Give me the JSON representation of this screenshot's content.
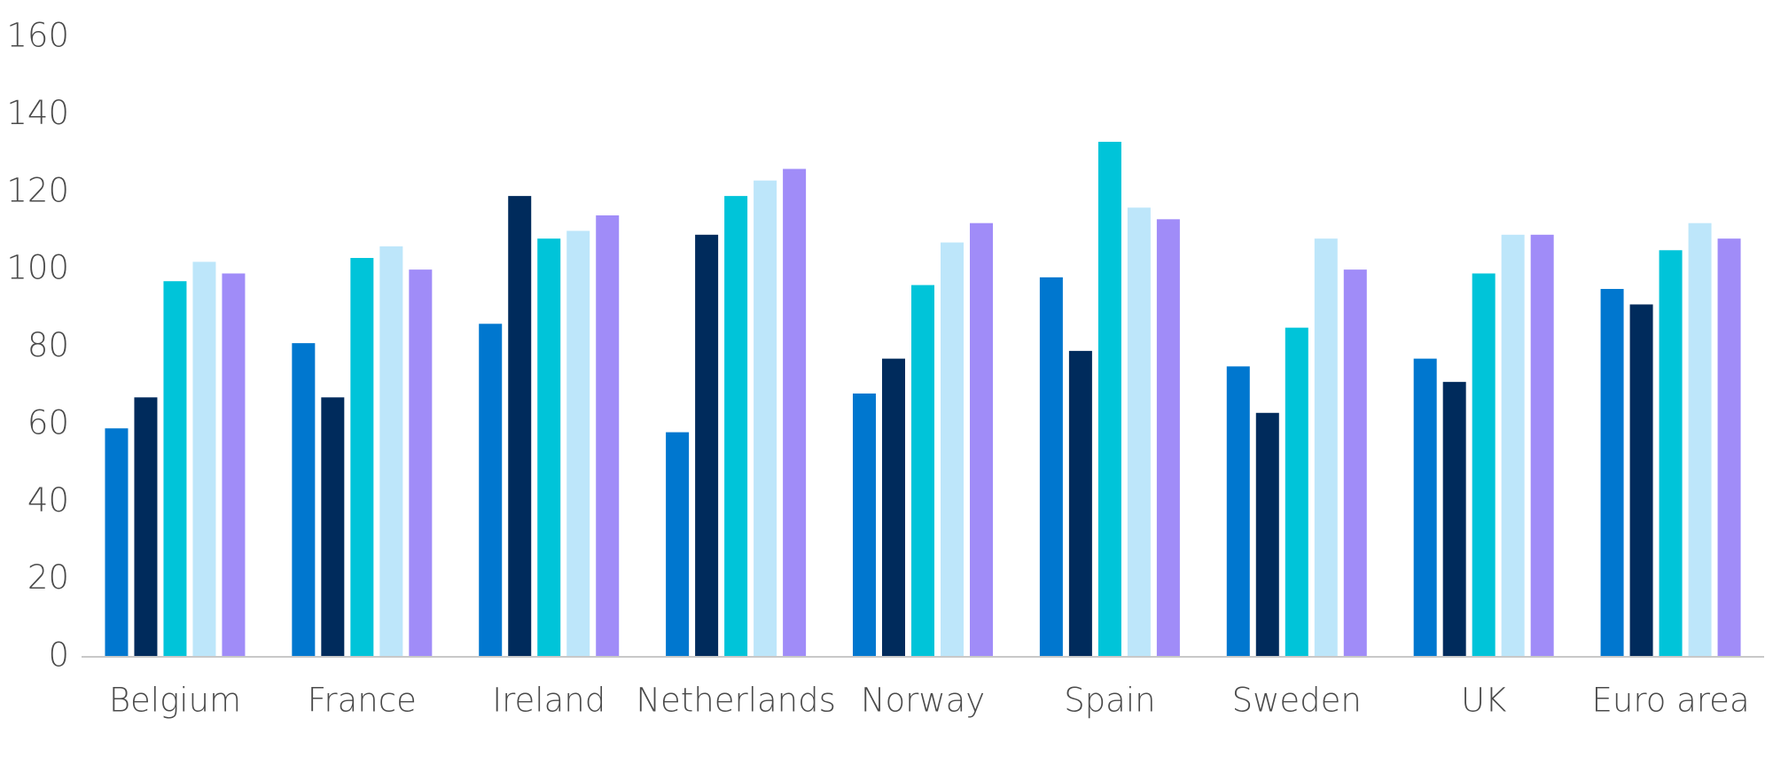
{
  "chart_data": {
    "type": "bar",
    "categories": [
      "Belgium",
      "France",
      "Ireland",
      "Netherlands",
      "Norway",
      "Spain",
      "Sweden",
      "UK",
      "Euro area"
    ],
    "series": [
      {
        "color": "#0077cf",
        "values": [
          59,
          81,
          86,
          58,
          68,
          98,
          75,
          77,
          95
        ]
      },
      {
        "color": "#002b5c",
        "values": [
          67,
          67,
          119,
          109,
          77,
          79,
          63,
          71,
          91
        ]
      },
      {
        "color": "#00c4d9",
        "values": [
          97,
          103,
          108,
          119,
          96,
          133,
          85,
          99,
          105
        ]
      },
      {
        "color": "#bde6fa",
        "values": [
          102,
          106,
          110,
          123,
          107,
          116,
          108,
          109,
          112
        ]
      },
      {
        "color": "#a08cf8",
        "values": [
          99,
          100,
          114,
          126,
          112,
          113,
          100,
          109,
          108
        ]
      }
    ],
    "ylim": [
      0,
      160
    ],
    "yticks": [
      0,
      20,
      40,
      60,
      80,
      100,
      120,
      140,
      160
    ],
    "grid": false
  }
}
